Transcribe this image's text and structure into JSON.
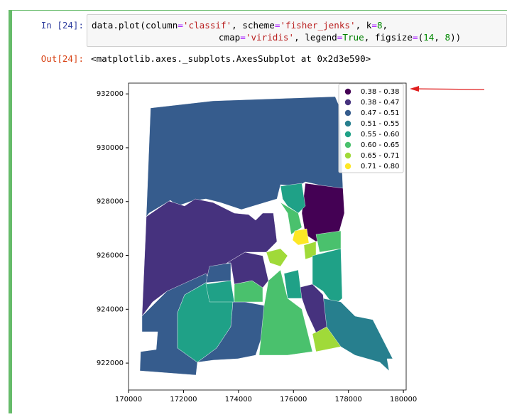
{
  "cell": {
    "in_prompt": "In [24]:",
    "out_prompt": "Out[24]:",
    "code": [
      [
        {
          "text": "data.plot(column",
          "color": "#000000"
        },
        {
          "text": "=",
          "color": "#aa22ff"
        },
        {
          "text": "'classif'",
          "color": "#ba2121"
        },
        {
          "text": ", scheme",
          "color": "#000000"
        },
        {
          "text": "=",
          "color": "#aa22ff"
        },
        {
          "text": "'fisher_jenks'",
          "color": "#ba2121"
        },
        {
          "text": ", k",
          "color": "#000000"
        },
        {
          "text": "=",
          "color": "#aa22ff"
        },
        {
          "text": "8",
          "color": "#008800"
        },
        {
          "text": ",",
          "color": "#000000"
        }
      ],
      [
        {
          "text": "cmap",
          "color": "#000000"
        },
        {
          "text": "=",
          "color": "#aa22ff"
        },
        {
          "text": "'viridis'",
          "color": "#ba2121"
        },
        {
          "text": ", legend",
          "color": "#000000"
        },
        {
          "text": "=",
          "color": "#aa22ff"
        },
        {
          "text": "True",
          "color": "#008000"
        },
        {
          "text": ", figsize",
          "color": "#000000"
        },
        {
          "text": "=",
          "color": "#aa22ff"
        },
        {
          "text": "(",
          "color": "#000000"
        },
        {
          "text": "14",
          "color": "#008800"
        },
        {
          "text": ", ",
          "color": "#000000"
        },
        {
          "text": "8",
          "color": "#008800"
        },
        {
          "text": "))",
          "color": "#000000"
        }
      ]
    ],
    "output": "<matplotlib.axes._subplots.AxesSubplot at 0x2d3e590>"
  },
  "chart_data": {
    "type": "choropleth",
    "xlim": [
      170000,
      180100
    ],
    "ylim": [
      921000,
      932400
    ],
    "xticks": [
      170000,
      172000,
      174000,
      176000,
      178000,
      180000
    ],
    "yticks": [
      922000,
      924000,
      926000,
      928000,
      930000,
      932000
    ],
    "legend_position": "upper right",
    "legend": [
      {
        "label": "0.38 - 0.38",
        "color": "#440154"
      },
      {
        "label": "0.38 - 0.47",
        "color": "#46327e"
      },
      {
        "label": "0.47 - 0.51",
        "color": "#365c8d"
      },
      {
        "label": "0.51 - 0.55",
        "color": "#277f8e"
      },
      {
        "label": "0.55 - 0.60",
        "color": "#1fa187"
      },
      {
        "label": "0.60 - 0.65",
        "color": "#4ac16d"
      },
      {
        "label": "0.65 - 0.71",
        "color": "#a0da39"
      },
      {
        "label": "0.71 - 0.80",
        "color": "#fde725"
      }
    ]
  }
}
